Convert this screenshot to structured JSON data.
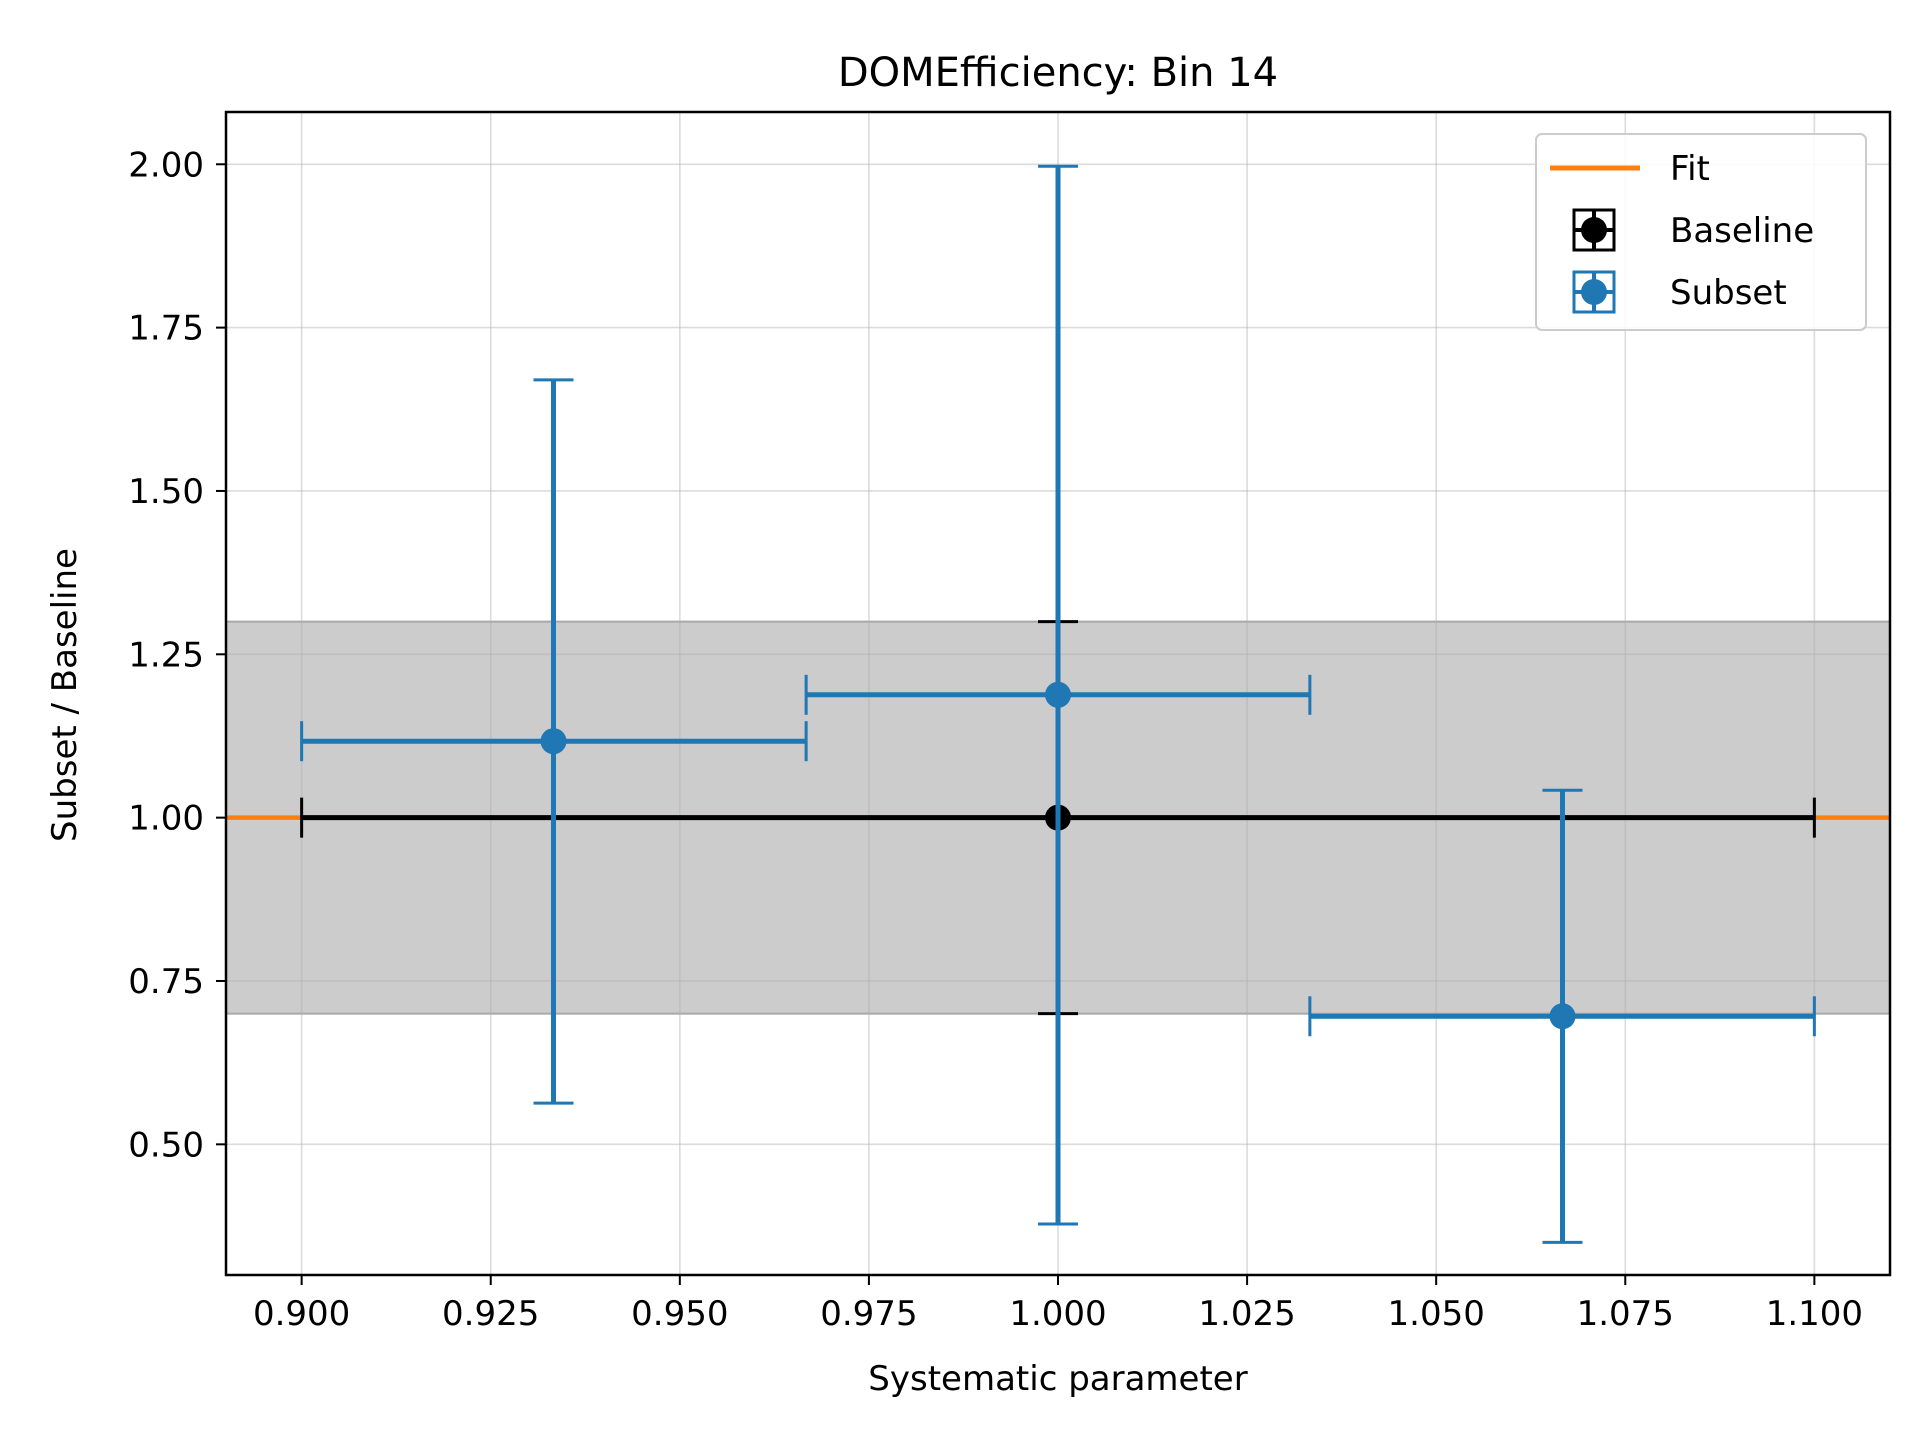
{
  "chart_data": {
    "type": "scatter",
    "title": "DOMEfficiency: Bin 14",
    "xlabel": "Systematic parameter",
    "ylabel": "Subset / Baseline",
    "xlim": [
      0.89,
      1.11
    ],
    "ylim": [
      0.3,
      2.08
    ],
    "xticks": [
      "0.900",
      "0.925",
      "0.950",
      "0.975",
      "1.000",
      "1.025",
      "1.050",
      "1.075",
      "1.100"
    ],
    "yticks": [
      "0.50",
      "0.75",
      "1.00",
      "1.25",
      "1.50",
      "1.75",
      "2.00"
    ],
    "grid": true,
    "legend_position": "top-right",
    "band": {
      "y_low": 0.7,
      "y_high": 1.3,
      "color": "#cccccc"
    },
    "series": [
      {
        "name": "Fit",
        "kind": "line",
        "color": "#ff7f0e",
        "x": [
          0.89,
          1.11
        ],
        "y": [
          1.0,
          1.0
        ]
      },
      {
        "name": "Baseline",
        "kind": "errorbar",
        "color": "#000000",
        "points": [
          {
            "x": 1.0,
            "y": 1.0,
            "x_low": 0.9,
            "x_high": 1.1,
            "y_low": 0.7,
            "y_high": 1.3
          }
        ]
      },
      {
        "name": "Subset",
        "kind": "errorbar",
        "color": "#1f77b4",
        "points": [
          {
            "x": 0.9333,
            "y": 1.117,
            "x_low": 0.9,
            "x_high": 0.9667,
            "y_low": 0.563,
            "y_high": 1.67
          },
          {
            "x": 1.0,
            "y": 1.188,
            "x_low": 0.9667,
            "x_high": 1.0333,
            "y_low": 0.378,
            "y_high": 1.997
          },
          {
            "x": 1.0667,
            "y": 0.696,
            "x_low": 1.0333,
            "x_high": 1.1,
            "y_low": 0.35,
            "y_high": 1.042
          }
        ]
      }
    ]
  }
}
